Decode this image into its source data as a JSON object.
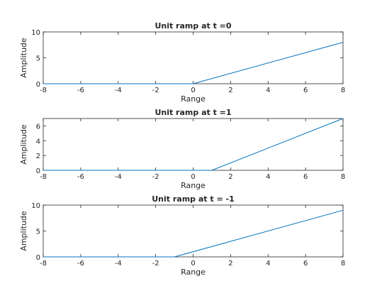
{
  "colors": {
    "line": "#0072BD",
    "axes": "#262626",
    "background": "#ffffff"
  },
  "chart_data": [
    {
      "type": "line",
      "title": "Unit ramp at t =0",
      "xlabel": "Range",
      "ylabel": "Amplitude",
      "xlim": [
        -8,
        8
      ],
      "ylim": [
        0,
        10
      ],
      "xticks": [
        -8,
        -6,
        -4,
        -2,
        0,
        2,
        4,
        6,
        8
      ],
      "yticks": [
        0,
        5,
        10
      ],
      "x": [
        -8,
        0,
        8
      ],
      "y": [
        0,
        0,
        8
      ],
      "grid": false
    },
    {
      "type": "line",
      "title": "Unit ramp at t =1",
      "xlabel": "Range",
      "ylabel": "Amplitude",
      "xlim": [
        -8,
        8
      ],
      "ylim": [
        0,
        7
      ],
      "xticks": [
        -8,
        -6,
        -4,
        -2,
        0,
        2,
        4,
        6,
        8
      ],
      "yticks": [
        0,
        2,
        4,
        6
      ],
      "x": [
        -8,
        1,
        8
      ],
      "y": [
        0,
        0,
        7
      ],
      "grid": false
    },
    {
      "type": "line",
      "title": "Unit ramp at t = -1",
      "xlabel": "Range",
      "ylabel": "Amplitude",
      "xlim": [
        -8,
        8
      ],
      "ylim": [
        0,
        10
      ],
      "xticks": [
        -8,
        -6,
        -4,
        -2,
        0,
        2,
        4,
        6,
        8
      ],
      "yticks": [
        0,
        5,
        10
      ],
      "x": [
        -8,
        -1,
        8
      ],
      "y": [
        0,
        0,
        9
      ],
      "grid": false
    }
  ]
}
